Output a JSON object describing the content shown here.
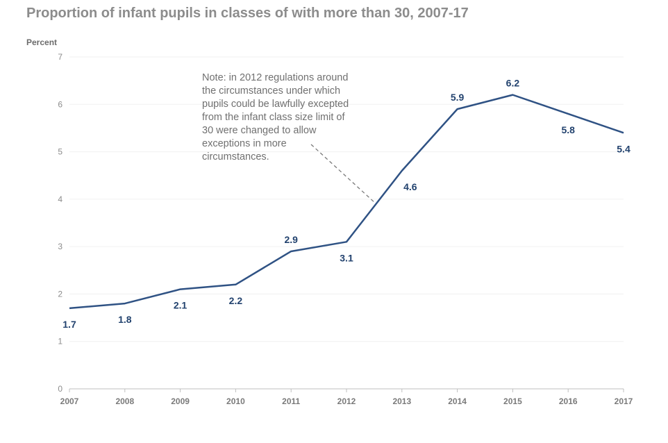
{
  "chart_data": {
    "type": "line",
    "title": "Proportion of infant pupils in classes of with more than 30, 2007-17",
    "ylabel": "Percent",
    "xlabel": "",
    "ylim": [
      0,
      7
    ],
    "yticks": [
      "0",
      "1",
      "2",
      "3",
      "4",
      "5",
      "6",
      "7"
    ],
    "categories": [
      "2007",
      "2008",
      "2009",
      "2010",
      "2011",
      "2012",
      "2013",
      "2014",
      "2015",
      "2016",
      "2017"
    ],
    "series": [
      {
        "values": [
          1.7,
          1.8,
          2.1,
          2.2,
          2.9,
          3.1,
          4.6,
          5.9,
          6.2,
          5.8,
          5.4
        ],
        "data_labels": [
          "1.7",
          "1.8",
          "2.1",
          "2.2",
          "2.9",
          "3.1",
          "4.6",
          "5.9",
          "6.2",
          "5.8",
          "5.4"
        ],
        "color": "#2f5284"
      }
    ],
    "grid": true,
    "annotation": {
      "lines": [
        "Note: in 2012 regulations around",
        "the circumstances under which",
        "pupils could be lawfully excepted",
        "from the infant class size limit of",
        "30 were changed to allow",
        "exceptions in more",
        "circumstances."
      ],
      "points_to_x": 2012.5
    }
  },
  "colors": {
    "title": "#8c8c8c",
    "series": "#2f5284",
    "data_label": "#22426e",
    "grid": "#f0f0f0"
  }
}
